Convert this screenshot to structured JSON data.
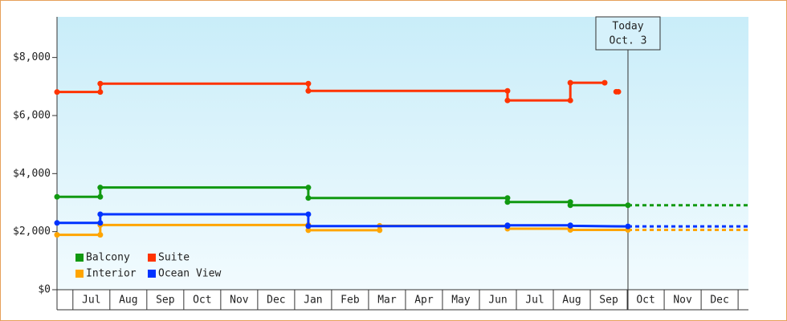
{
  "chart_data": {
    "type": "step",
    "ylim": [
      0,
      9400
    ],
    "yticks": [
      {
        "value": 0,
        "label": "$0"
      },
      {
        "value": 2000,
        "label": "$2,000"
      },
      {
        "value": 4000,
        "label": "$4,000"
      },
      {
        "value": 6000,
        "label": "$6,000"
      },
      {
        "value": 8000,
        "label": "$8,000"
      }
    ],
    "xlim": [
      0.57,
      19.28
    ],
    "xticks": [
      {
        "value": 1.5,
        "label": "Jul"
      },
      {
        "value": 2.5,
        "label": "Aug"
      },
      {
        "value": 3.5,
        "label": "Sep"
      },
      {
        "value": 4.5,
        "label": "Oct"
      },
      {
        "value": 5.5,
        "label": "Nov"
      },
      {
        "value": 6.5,
        "label": "Dec"
      },
      {
        "value": 7.5,
        "label": "Jan"
      },
      {
        "value": 8.5,
        "label": "Feb"
      },
      {
        "value": 9.5,
        "label": "Mar"
      },
      {
        "value": 10.5,
        "label": "Apr"
      },
      {
        "value": 11.5,
        "label": "May"
      },
      {
        "value": 12.5,
        "label": "Jun"
      },
      {
        "value": 13.5,
        "label": "Jul"
      },
      {
        "value": 14.5,
        "label": "Aug"
      },
      {
        "value": 15.5,
        "label": "Sep"
      },
      {
        "value": 16.5,
        "label": "Oct"
      },
      {
        "value": 17.5,
        "label": "Nov"
      },
      {
        "value": 18.5,
        "label": "Dec"
      }
    ],
    "today": {
      "x": 16.02,
      "label": "Today",
      "date": "Oct. 3"
    },
    "series": [
      {
        "name": "Balcony",
        "color": "#119911",
        "projection": true,
        "x": [
          0.57,
          1.74,
          1.74,
          7.37,
          7.37,
          12.76,
          12.76,
          14.46,
          14.46,
          16.02
        ],
        "values": [
          3200,
          3200,
          3520,
          3520,
          3160,
          3160,
          3020,
          3020,
          2910,
          2910
        ]
      },
      {
        "name": "Suite",
        "color": "#ff3300",
        "projection": false,
        "x": [
          0.57,
          1.74,
          1.74,
          7.37,
          7.37,
          12.76,
          12.76,
          14.46,
          14.46,
          15.39,
          15.55,
          15.7,
          15.76
        ],
        "values": [
          6810,
          6810,
          7100,
          7100,
          6850,
          6850,
          6520,
          6520,
          7130,
          7130,
          null,
          6820,
          6820
        ]
      },
      {
        "name": "Interior",
        "color": "#ffa500",
        "projection": true,
        "x": [
          0.57,
          1.74,
          1.74,
          7.37,
          7.37,
          9.3,
          9.3,
          12.76,
          12.76,
          14.46,
          14.46,
          16.02
        ],
        "values": [
          1890,
          1890,
          2230,
          2230,
          2050,
          2050,
          2200,
          2200,
          2100,
          2100,
          2060,
          2060
        ]
      },
      {
        "name": "Ocean View",
        "color": "#0033ff",
        "projection": true,
        "x": [
          0.57,
          1.74,
          1.74,
          7.37,
          7.37,
          12.76,
          12.76,
          14.46,
          14.46,
          16.02
        ],
        "values": [
          2300,
          2300,
          2600,
          2600,
          2190,
          2190,
          2220,
          2220,
          2200,
          2180
        ]
      }
    ]
  }
}
